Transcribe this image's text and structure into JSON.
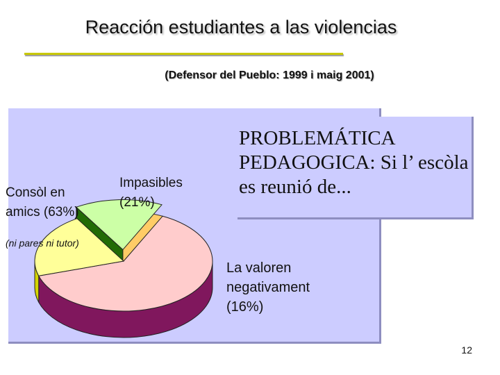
{
  "slide": {
    "title": "Reacción estudiantes a las violencias",
    "subtitle": "(Defensor del Pueblo: 1999 i maig 2001)",
    "callout_text": "PROBLEMÁTICA PEDAGOGICA: Si l’ escòla es reunió de...",
    "page_number": "12"
  },
  "chart_data": {
    "type": "pie",
    "title": "",
    "slices": [
      {
        "label_lines": [
          "Consòl en",
          "amics (63%)"
        ],
        "note": "(ni pares ni tutor)",
        "value": 63,
        "color": "#ffcccc",
        "side_color": "#80175d",
        "exploded": false
      },
      {
        "label_lines": [
          "Impasibles",
          "(21%)"
        ],
        "value": 21,
        "color": "#ffff99",
        "side_color": "#d4d400",
        "exploded": false
      },
      {
        "label_lines": [
          "La valoren",
          "negativament",
          "(16%)"
        ],
        "value": 16,
        "color": "#ccffa6",
        "side_color": "#226b06",
        "exploded": true
      }
    ],
    "gap_color": "#ffcc66"
  }
}
